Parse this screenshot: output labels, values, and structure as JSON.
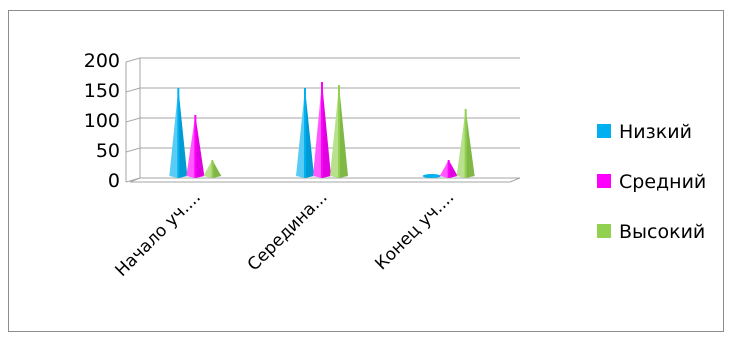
{
  "chart_data": {
    "type": "bar",
    "style": "3d-cone",
    "categories": [
      "Начало уч....",
      "Середина...",
      "Конец уч...."
    ],
    "series": [
      {
        "name": "Низкий",
        "values": [
          150,
          150,
          5
        ],
        "color": "#00b0f0"
      },
      {
        "name": "Средний",
        "values": [
          105,
          160,
          30
        ],
        "color": "#ff00ff"
      },
      {
        "name": "Высокий",
        "values": [
          30,
          155,
          115
        ],
        "color": "#92d050"
      }
    ],
    "ylim": [
      0,
      200
    ],
    "yticks": [
      "0",
      "50",
      "100",
      "150",
      "200"
    ],
    "grid": true,
    "legend_position": "right"
  }
}
